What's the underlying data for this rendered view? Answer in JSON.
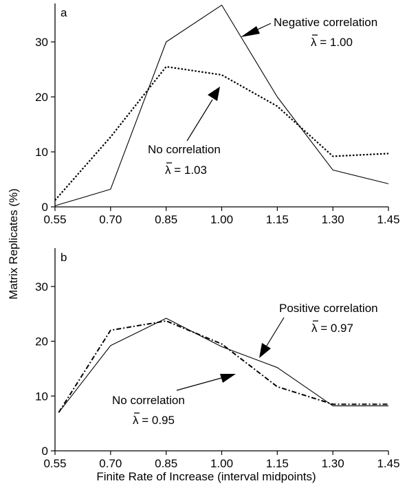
{
  "chart_data": [
    {
      "panel_label": "a",
      "type": "line",
      "xlabel": "",
      "ylabel": "",
      "x": [
        0.55,
        0.7,
        0.85,
        1.0,
        1.15,
        1.3,
        1.45
      ],
      "x_ticks": [
        "0.55",
        "0.70",
        "0.85",
        "1.00",
        "1.15",
        "1.30",
        "1.45"
      ],
      "y_ticks": [
        "0",
        "10",
        "20",
        "30"
      ],
      "xlim": [
        0.55,
        1.45
      ],
      "ylim": [
        0,
        37
      ],
      "grid": false,
      "series": [
        {
          "key": "negative",
          "style": "solid",
          "x": [
            0.55,
            0.7,
            0.85,
            1.0,
            1.15,
            1.3,
            1.45
          ],
          "values": [
            0.2,
            3.2,
            30,
            36.7,
            20,
            6.7,
            4.2
          ]
        },
        {
          "key": "none",
          "style": "dotted",
          "x": [
            0.55,
            0.7,
            0.85,
            1.0,
            1.15,
            1.3,
            1.45
          ],
          "values": [
            1.2,
            12.7,
            25.5,
            24,
            18.3,
            9.2,
            9.7
          ]
        }
      ],
      "annotations": [
        {
          "key": "negative",
          "label": "Negative correlation",
          "lambda_text": "λ = 1.00"
        },
        {
          "key": "none",
          "label": "No correlation",
          "lambda_text": "λ = 1.03"
        }
      ]
    },
    {
      "panel_label": "b",
      "type": "line",
      "xlabel": "Finite Rate of Increase (interval midpoints)",
      "ylabel": "",
      "x": [
        0.55,
        0.7,
        0.85,
        1.0,
        1.15,
        1.3,
        1.45
      ],
      "x_ticks": [
        "0.55",
        "0.70",
        "0.85",
        "1.00",
        "1.15",
        "1.30",
        "1.45"
      ],
      "y_ticks": [
        "0",
        "10",
        "20",
        "30"
      ],
      "xlim": [
        0.55,
        1.45
      ],
      "ylim": [
        0,
        37
      ],
      "grid": false,
      "series": [
        {
          "key": "positive",
          "style": "solid",
          "x": [
            0.56,
            0.7,
            0.85,
            1.0,
            1.15,
            1.3,
            1.45
          ],
          "values": [
            7,
            19.2,
            24.2,
            19,
            15.2,
            8.2,
            8.2
          ]
        },
        {
          "key": "none",
          "style": "dash-dot",
          "x": [
            0.56,
            0.7,
            0.85,
            1.0,
            1.15,
            1.3,
            1.45
          ],
          "values": [
            7,
            22,
            23.7,
            19.5,
            11.7,
            8.5,
            8.5
          ]
        }
      ],
      "annotations": [
        {
          "key": "positive",
          "label": "Positive correlation",
          "lambda_text": "λ = 0.97"
        },
        {
          "key": "none",
          "label": "No correlation",
          "lambda_text": "λ = 0.95"
        }
      ]
    }
  ],
  "shared_ylabel": "Matrix Replicates (%)"
}
